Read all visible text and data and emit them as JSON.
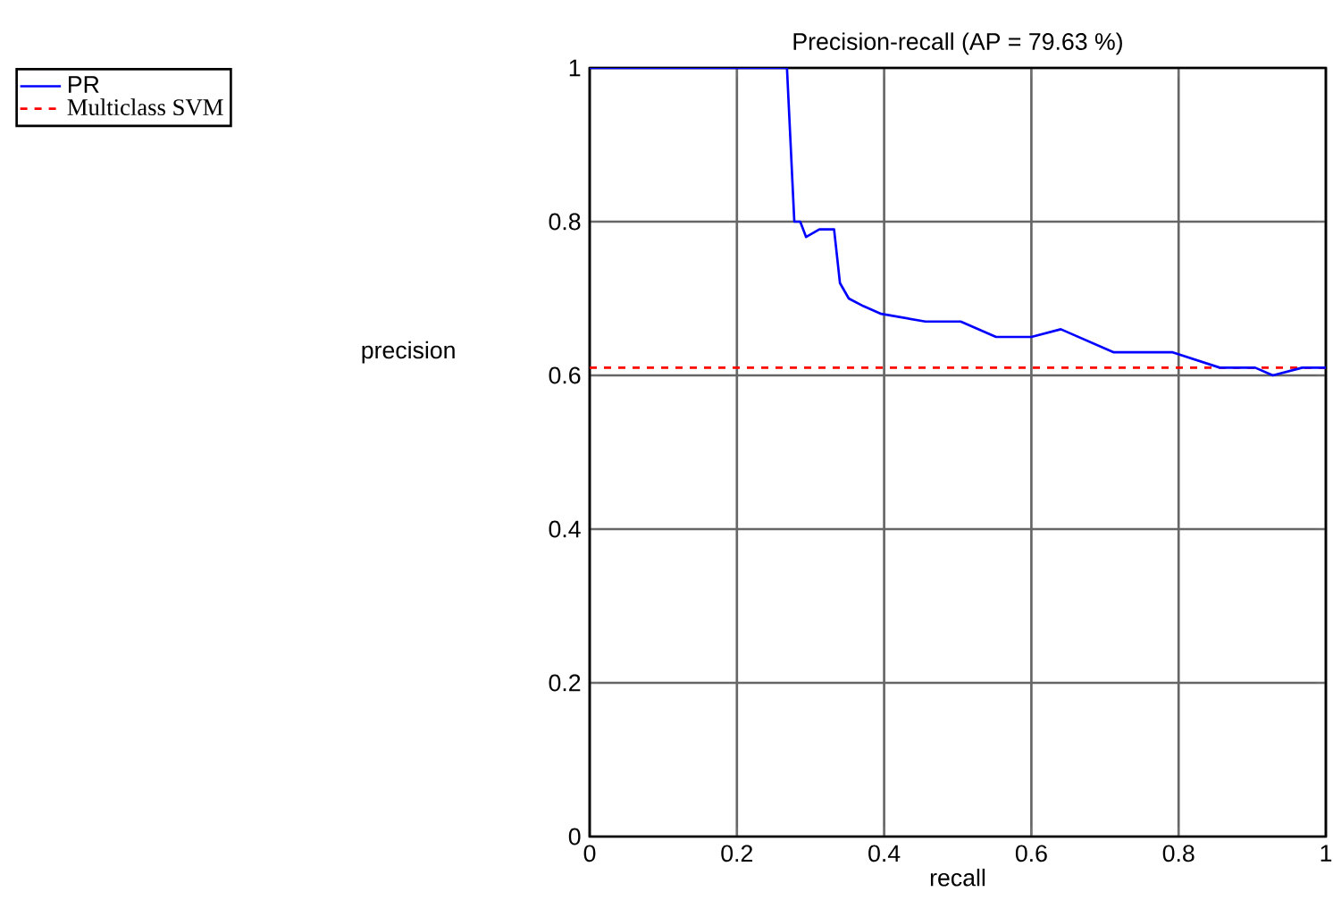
{
  "chart_data": {
    "type": "line",
    "title": "Precision-recall (AP = 79.63 %)",
    "xlabel": "recall",
    "ylabel": "precision",
    "x": [
      0,
      0.268,
      0.272,
      0.278,
      0.286,
      0.294,
      0.312,
      0.332,
      0.34,
      0.352,
      0.372,
      0.396,
      0.456,
      0.504,
      0.552,
      0.6,
      0.64,
      0.712,
      0.792,
      0.856,
      0.904,
      0.928,
      0.968,
      0.992,
      1
    ],
    "series": [
      {
        "name": "PR",
        "color": "#0000ff",
        "values": [
          1,
          1,
          0.92,
          0.8,
          0.8,
          0.78,
          0.79,
          0.79,
          0.72,
          0.7,
          0.69,
          0.68,
          0.67,
          0.67,
          0.65,
          0.65,
          0.66,
          0.63,
          0.63,
          0.61,
          0.61,
          0.6,
          0.61,
          0.61,
          0.61
        ]
      }
    ],
    "ref_lines": [
      {
        "axis": "y",
        "value": 0.61,
        "label": "Multiclass SVM",
        "color": "#ff0000",
        "line_style": "dashed"
      }
    ],
    "xlim": [
      0,
      1
    ],
    "ylim": [
      0,
      1
    ],
    "xticks": [
      0,
      0.2,
      0.4,
      0.6,
      0.8,
      1
    ],
    "yticks": [
      0,
      0.2,
      0.4,
      0.6,
      0.8,
      1
    ],
    "grid": true,
    "legend": "top left",
    "line_style": "solid",
    "marker": "none"
  }
}
